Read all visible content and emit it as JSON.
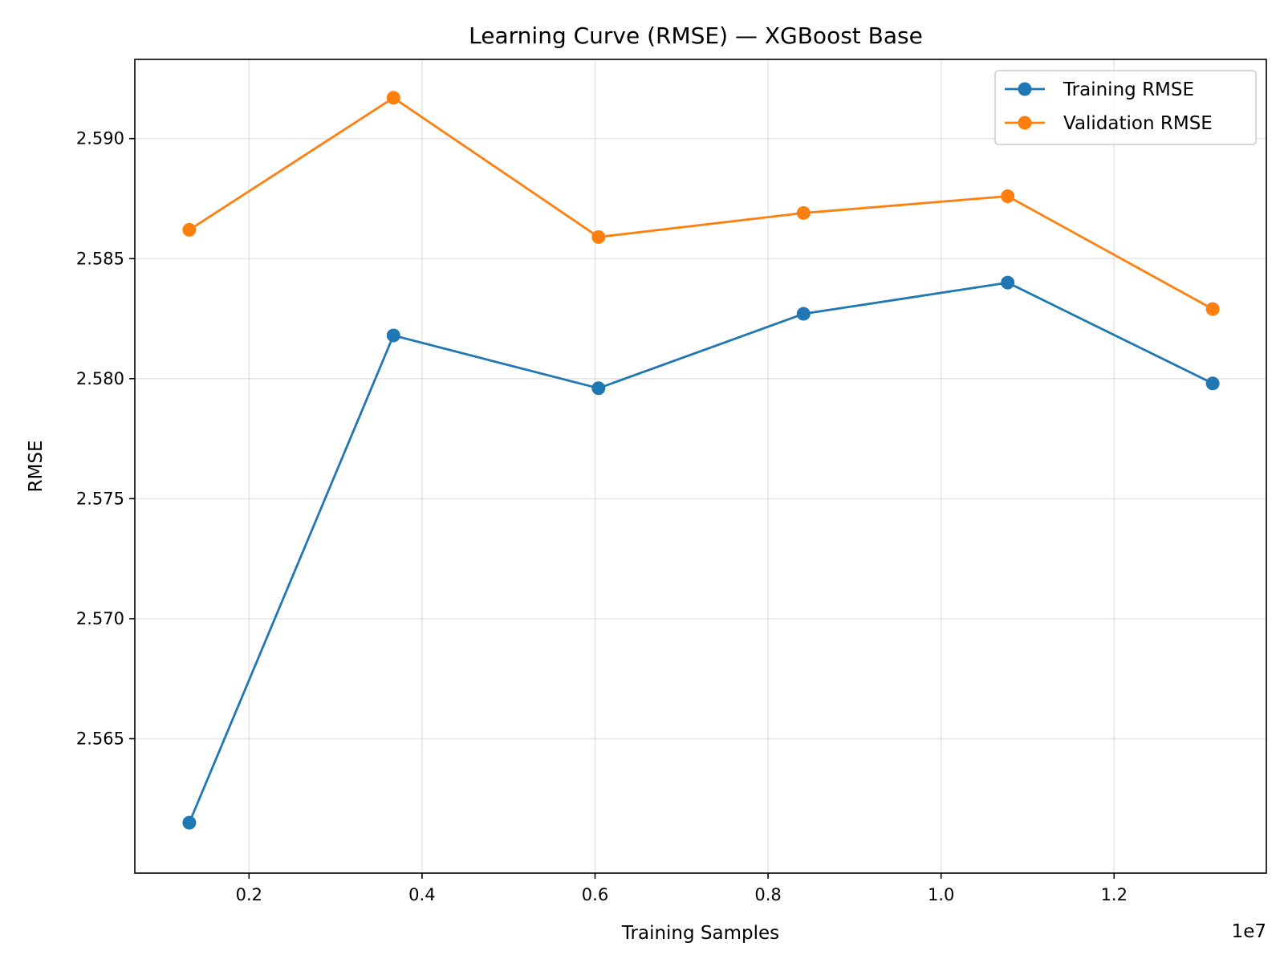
{
  "chart_data": {
    "type": "line",
    "title": "Learning Curve (RMSE) — XGBoost Base",
    "xlabel": "Training Samples",
    "ylabel": "RMSE",
    "x_offset_label": "1e7",
    "x": [
      1310000,
      3670000,
      6040000,
      8410000,
      10770000,
      13140000
    ],
    "xlim": [
      680000,
      13760000
    ],
    "ylim": [
      2.5594,
      2.5933
    ],
    "x_ticks": [
      2000000,
      4000000,
      6000000,
      8000000,
      10000000,
      12000000
    ],
    "x_tick_labels": [
      "0.2",
      "0.4",
      "0.6",
      "0.8",
      "1.0",
      "1.2"
    ],
    "y_ticks": [
      2.565,
      2.57,
      2.575,
      2.58,
      2.585,
      2.59
    ],
    "y_tick_labels": [
      "2.565",
      "2.570",
      "2.575",
      "2.580",
      "2.585",
      "2.590"
    ],
    "grid": true,
    "legend_position": "top-right",
    "series": [
      {
        "name": "Training RMSE",
        "color": "#1f77b4",
        "values": [
          2.5615,
          2.5818,
          2.5796,
          2.5827,
          2.584,
          2.5798
        ]
      },
      {
        "name": "Validation RMSE",
        "color": "#ff7f0e",
        "values": [
          2.5862,
          2.5917,
          2.5859,
          2.5869,
          2.5876,
          2.5829
        ]
      }
    ]
  }
}
